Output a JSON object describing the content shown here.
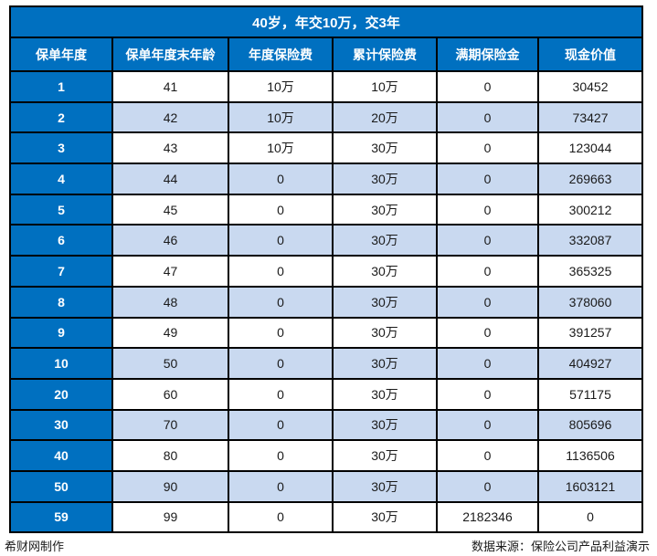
{
  "title": "40岁，年交10万，交3年",
  "chart_data": {
    "type": "table",
    "title": "40岁，年交10万，交3年",
    "columns": [
      "保单年度",
      "保单年度末年龄",
      "年度保险费",
      "累计保险费",
      "满期保险金",
      "现金价值"
    ],
    "rows": [
      [
        "1",
        "41",
        "10万",
        "10万",
        "0",
        "30452"
      ],
      [
        "2",
        "42",
        "10万",
        "20万",
        "0",
        "73427"
      ],
      [
        "3",
        "43",
        "10万",
        "30万",
        "0",
        "123044"
      ],
      [
        "4",
        "44",
        "0",
        "30万",
        "0",
        "269663"
      ],
      [
        "5",
        "45",
        "0",
        "30万",
        "0",
        "300212"
      ],
      [
        "6",
        "46",
        "0",
        "30万",
        "0",
        "332087"
      ],
      [
        "7",
        "47",
        "0",
        "30万",
        "0",
        "365325"
      ],
      [
        "8",
        "48",
        "0",
        "30万",
        "0",
        "378060"
      ],
      [
        "9",
        "49",
        "0",
        "30万",
        "0",
        "391257"
      ],
      [
        "10",
        "50",
        "0",
        "30万",
        "0",
        "404927"
      ],
      [
        "20",
        "60",
        "0",
        "30万",
        "0",
        "571175"
      ],
      [
        "30",
        "70",
        "0",
        "30万",
        "0",
        "805696"
      ],
      [
        "40",
        "80",
        "0",
        "30万",
        "0",
        "1136506"
      ],
      [
        "50",
        "90",
        "0",
        "30万",
        "0",
        "1603121"
      ],
      [
        "59",
        "99",
        "0",
        "30万",
        "2182346",
        "0"
      ]
    ]
  },
  "footer": {
    "left": "希财网制作",
    "right": "数据来源：保险公司产品利益演示"
  },
  "colors": {
    "header_blue": "#0070C0",
    "stripe_blue": "#C9D9F0",
    "border_black": "#000000",
    "text_white": "#FFFFFF"
  }
}
